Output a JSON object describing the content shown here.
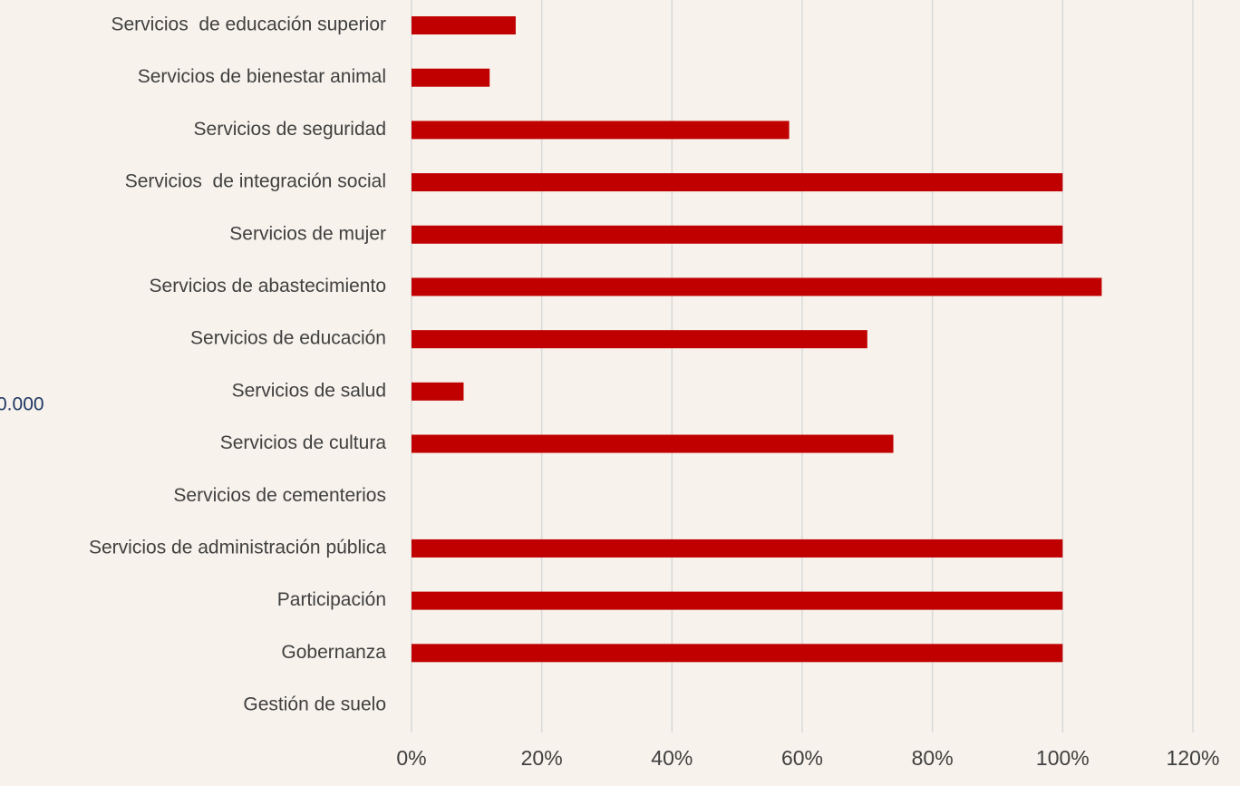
{
  "chart_data": {
    "type": "bar",
    "orientation": "horizontal",
    "annotation": "0.000",
    "categories": [
      "Servicios  de educación superior",
      "Servicios de bienestar animal",
      "Servicios de seguridad",
      "Servicios  de integración social",
      "Servicios de mujer",
      "Servicios de abastecimiento",
      "Servicios de educación",
      "Servicios de salud",
      "Servicios de cultura",
      "Servicios de cementerios",
      "Servicios de administración pública",
      "Participación",
      "Gobernanza",
      "Gestión de suelo"
    ],
    "values": [
      16,
      12,
      58,
      100,
      100,
      106,
      70,
      8,
      74,
      0,
      100,
      100,
      100,
      0
    ],
    "color": "#c00000",
    "xlim": [
      0,
      120
    ],
    "xticks": [
      {
        "value": 0,
        "label": "0%"
      },
      {
        "value": 20,
        "label": "20%"
      },
      {
        "value": 40,
        "label": "40%"
      },
      {
        "value": 60,
        "label": "60%"
      },
      {
        "value": 80,
        "label": "80%"
      },
      {
        "value": 100,
        "label": "100%"
      },
      {
        "value": 120,
        "label": "120%"
      }
    ],
    "grid": true
  }
}
